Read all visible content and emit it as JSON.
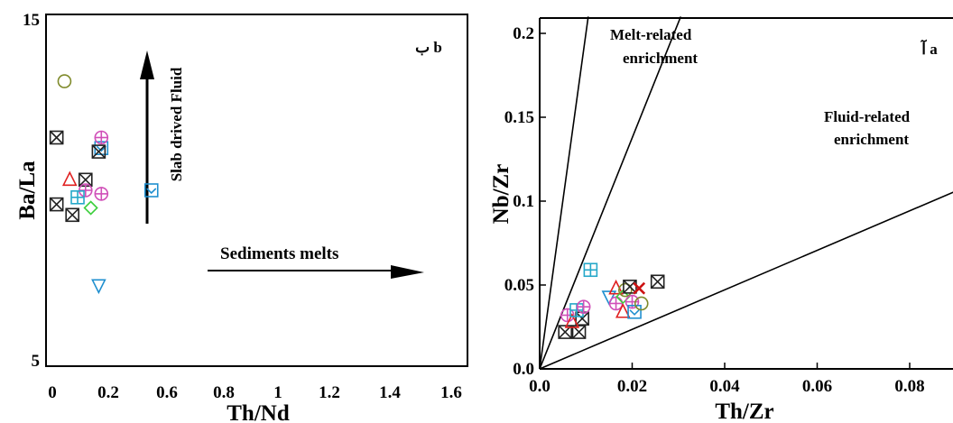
{
  "chart_data": [
    {
      "type": "scatter",
      "panel_label": "ب b",
      "xlabel": "Th/Nd",
      "ylabel": "Ba/La",
      "xlim": [
        0,
        1.6
      ],
      "ylim": [
        5,
        15
      ],
      "xticks": [
        "0",
        "0.2",
        "0.6",
        "0.8",
        "1",
        "1.2",
        "1.4",
        "1.6"
      ],
      "yticks": [
        "5",
        "15"
      ],
      "grid": false,
      "annotations": {
        "vertical_arrow": "Slab drived Fluid",
        "horizontal_arrow": "Sediments melts"
      },
      "points": [
        {
          "x": 0.07,
          "y": 13.1,
          "marker": "circle",
          "color": "#7f8a2a"
        },
        {
          "x": 0.04,
          "y": 11.5,
          "marker": "boxx",
          "color": "#222222"
        },
        {
          "x": 0.21,
          "y": 11.2,
          "marker": "box",
          "color": "#1f8fcf"
        },
        {
          "x": 0.21,
          "y": 11.5,
          "marker": "circleplus",
          "color": "#d04fb8"
        },
        {
          "x": 0.2,
          "y": 11.1,
          "marker": "boxx",
          "color": "#222222"
        },
        {
          "x": 0.09,
          "y": 10.3,
          "marker": "triangle",
          "color": "#e02020"
        },
        {
          "x": 0.15,
          "y": 10.3,
          "marker": "boxx",
          "color": "#222222"
        },
        {
          "x": 0.15,
          "y": 10.0,
          "marker": "circleplus",
          "color": "#d04fb8"
        },
        {
          "x": 0.21,
          "y": 9.9,
          "marker": "circleplus",
          "color": "#d04fb8"
        },
        {
          "x": 0.12,
          "y": 9.8,
          "marker": "boxplus",
          "color": "#26a8c9"
        },
        {
          "x": 0.04,
          "y": 9.6,
          "marker": "boxx",
          "color": "#222222"
        },
        {
          "x": 0.17,
          "y": 9.5,
          "marker": "diamond",
          "color": "#3ccf3c"
        },
        {
          "x": 0.1,
          "y": 9.3,
          "marker": "boxx",
          "color": "#222222"
        },
        {
          "x": 0.4,
          "y": 10.0,
          "marker": "box",
          "color": "#1f8fcf"
        },
        {
          "x": 0.2,
          "y": 7.3,
          "marker": "triangledown",
          "color": "#1f8fcf"
        }
      ]
    },
    {
      "type": "scatter",
      "panel_label": "آ a",
      "xlabel": "Th/Zr",
      "ylabel": "Nb/Zr",
      "xlim": [
        0,
        0.09
      ],
      "ylim": [
        0,
        0.21
      ],
      "xticks": [
        0.0,
        0.02,
        0.04,
        0.06,
        0.08
      ],
      "yticks": [
        0.0,
        0.05,
        0.1,
        0.15,
        0.2
      ],
      "xtick_labels": [
        "0.0",
        "0.02",
        "0.04",
        "0.06",
        "0.08"
      ],
      "ytick_labels": [
        "0.0",
        "0.05",
        "0.1",
        "0.15",
        "0.2"
      ],
      "grid": false,
      "reference_lines": [
        {
          "from": [
            0,
            0
          ],
          "to": [
            0.0105,
            0.21
          ]
        },
        {
          "from": [
            0,
            0
          ],
          "to": [
            0.0305,
            0.21
          ]
        },
        {
          "from": [
            0,
            0
          ],
          "to": [
            0.09,
            0.106
          ]
        }
      ],
      "annotations": {
        "melt": [
          "Melt-related",
          "enrichment"
        ],
        "fluid": [
          "Fluid-related",
          "enrichment"
        ]
      },
      "points": [
        {
          "x": 0.0055,
          "y": 0.022,
          "marker": "boxx",
          "color": "#222222"
        },
        {
          "x": 0.0085,
          "y": 0.022,
          "marker": "boxx",
          "color": "#222222"
        },
        {
          "x": 0.0092,
          "y": 0.03,
          "marker": "boxx",
          "color": "#222222"
        },
        {
          "x": 0.006,
          "y": 0.032,
          "marker": "circleplus",
          "color": "#d04fb8"
        },
        {
          "x": 0.007,
          "y": 0.028,
          "marker": "triangle",
          "color": "#e02020"
        },
        {
          "x": 0.008,
          "y": 0.035,
          "marker": "boxplus",
          "color": "#26a8c9"
        },
        {
          "x": 0.0095,
          "y": 0.037,
          "marker": "circleplus",
          "color": "#d04fb8"
        },
        {
          "x": 0.011,
          "y": 0.059,
          "marker": "boxplus",
          "color": "#26a8c9"
        },
        {
          "x": 0.015,
          "y": 0.043,
          "marker": "triangledown",
          "color": "#1f8fcf"
        },
        {
          "x": 0.0165,
          "y": 0.048,
          "marker": "triangle",
          "color": "#e02020"
        },
        {
          "x": 0.0165,
          "y": 0.039,
          "marker": "circleplus",
          "color": "#d04fb8"
        },
        {
          "x": 0.018,
          "y": 0.034,
          "marker": "triangle",
          "color": "#e02020"
        },
        {
          "x": 0.018,
          "y": 0.043,
          "marker": "diamond",
          "color": "#3ccf3c"
        },
        {
          "x": 0.0185,
          "y": 0.047,
          "marker": "circle",
          "color": "#7f8a2a"
        },
        {
          "x": 0.0195,
          "y": 0.049,
          "marker": "boxx",
          "color": "#222222"
        },
        {
          "x": 0.02,
          "y": 0.04,
          "marker": "circleplus",
          "color": "#d04fb8"
        },
        {
          "x": 0.0205,
          "y": 0.034,
          "marker": "box",
          "color": "#1f8fcf"
        },
        {
          "x": 0.0215,
          "y": 0.048,
          "marker": "x",
          "color": "#cc1111"
        },
        {
          "x": 0.022,
          "y": 0.039,
          "marker": "circle",
          "color": "#7f8a2a"
        },
        {
          "x": 0.0255,
          "y": 0.052,
          "marker": "boxx",
          "color": "#222222"
        }
      ]
    }
  ]
}
